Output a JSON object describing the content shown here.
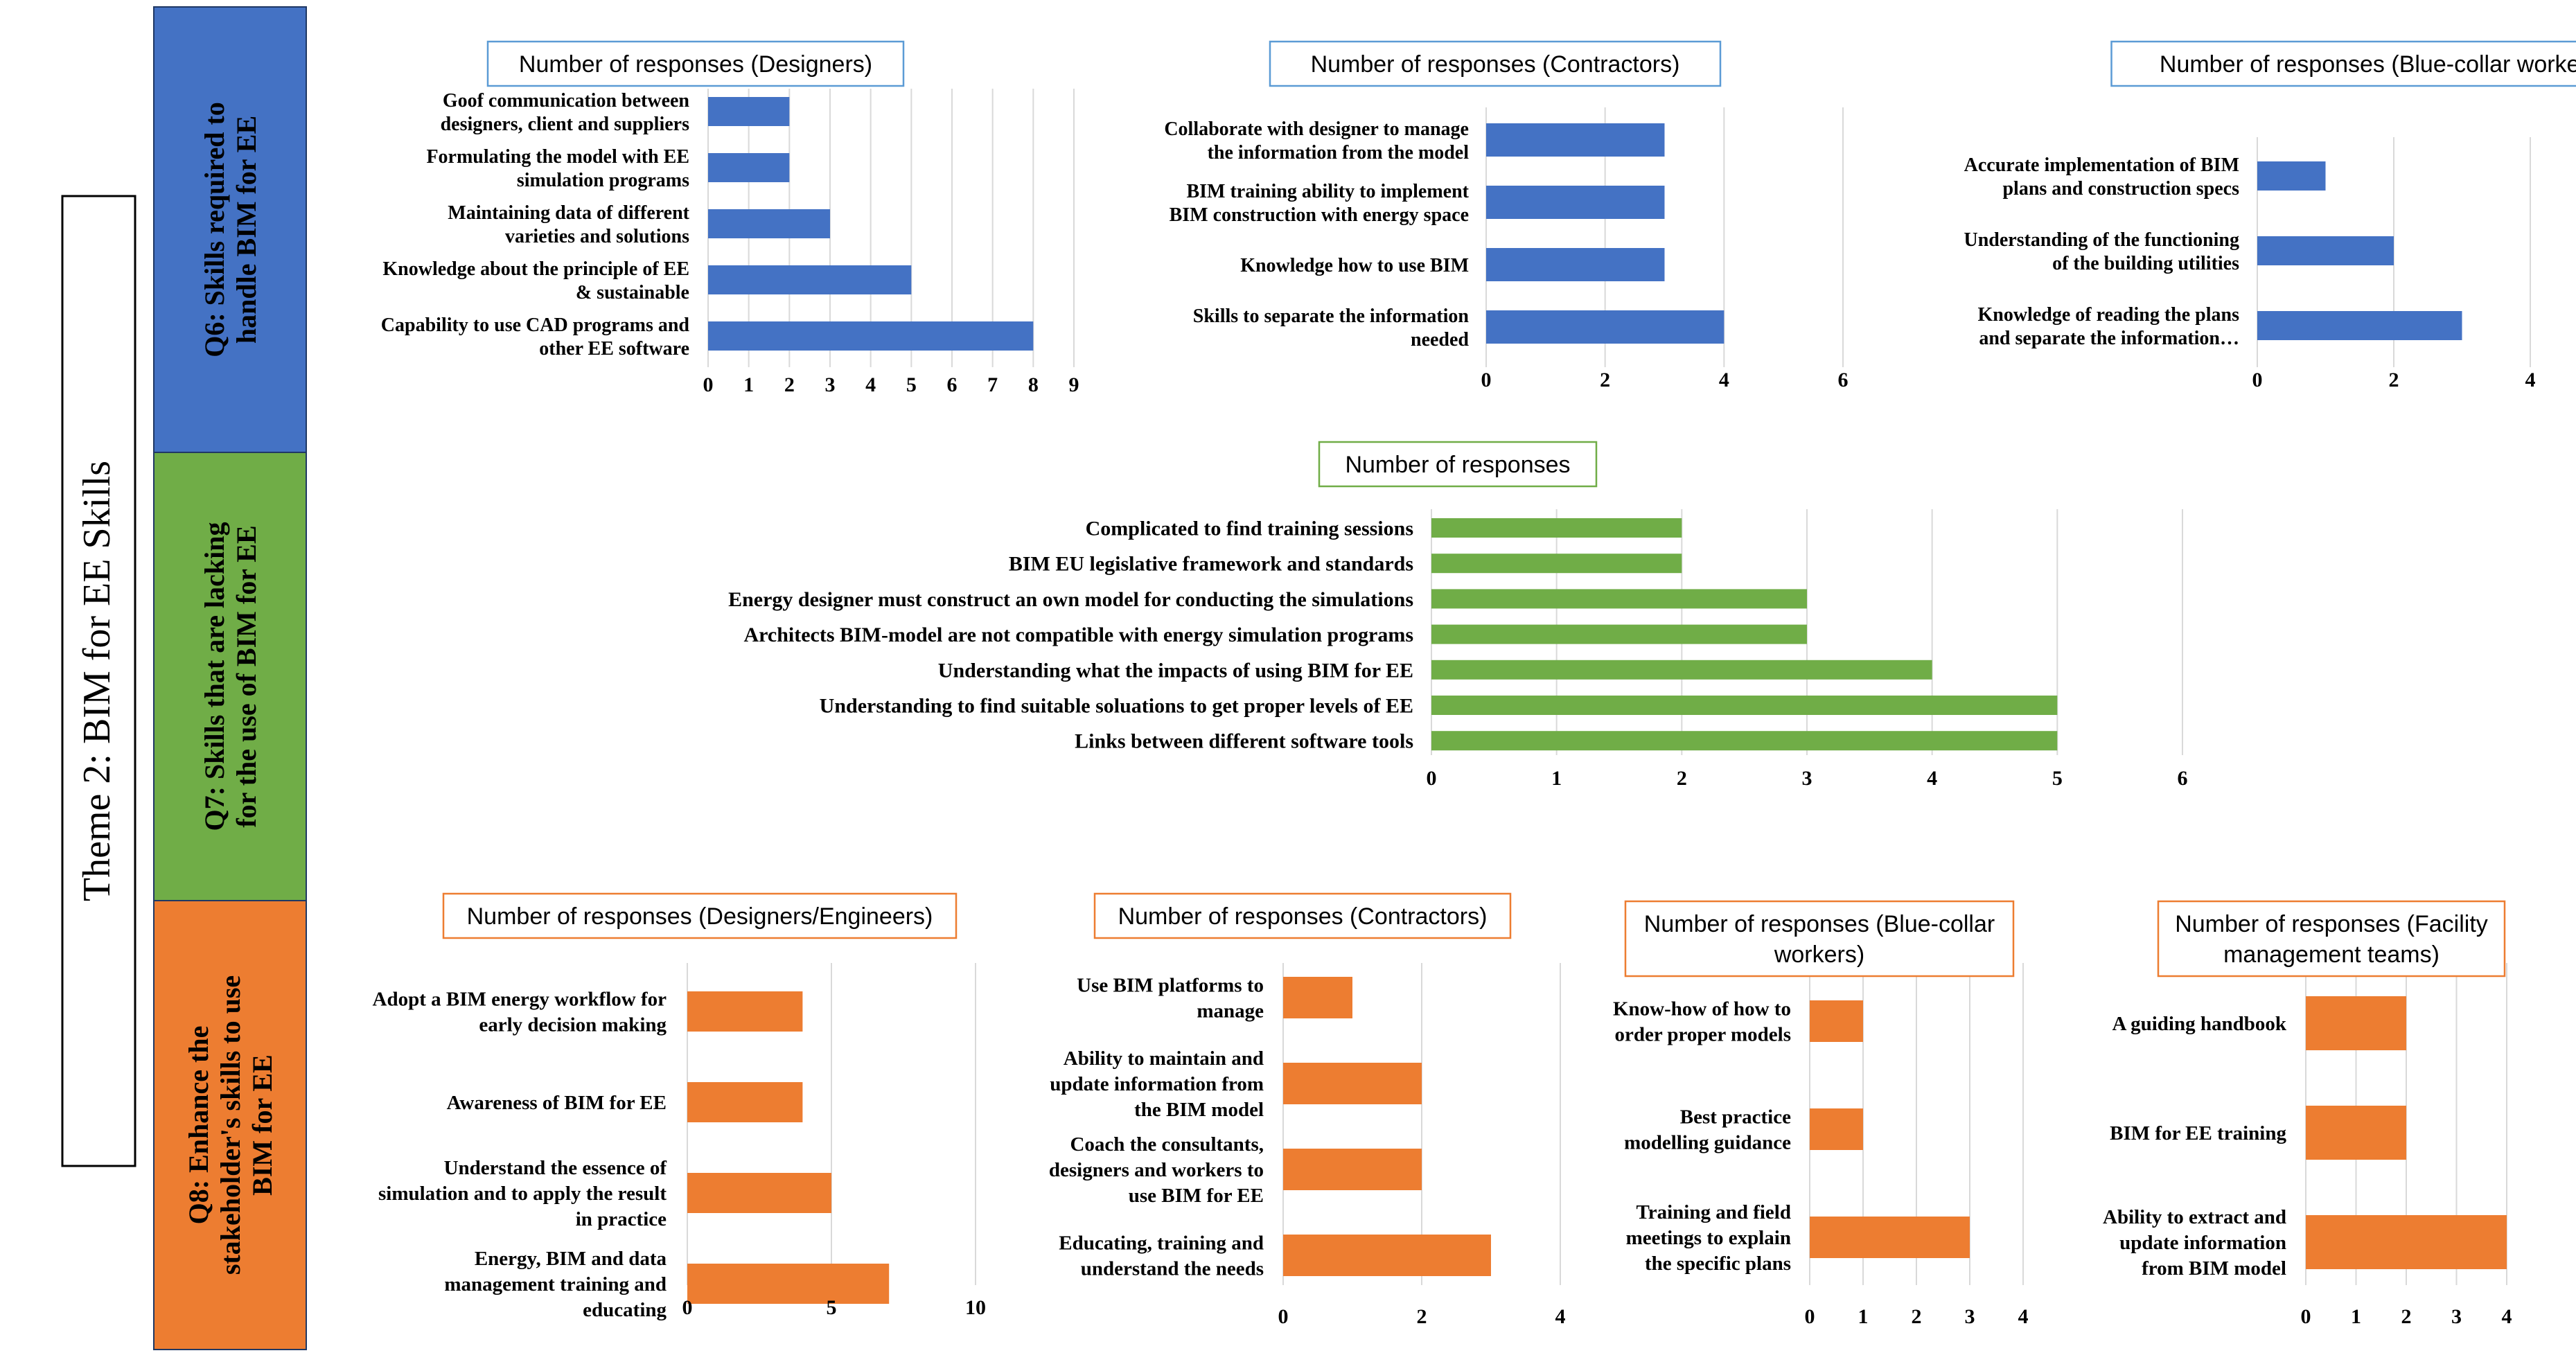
{
  "theme_label": "Theme 2: BIM for EE Skills",
  "sections": [
    {
      "id": "q6",
      "label_lines": [
        "Q6: Skills required to",
        "handle BIM for EE"
      ],
      "color": "#4472C4"
    },
    {
      "id": "q7",
      "label_lines": [
        "Q7: Skills that are lacking",
        "for the use of BIM for EE"
      ],
      "color": "#70AD47"
    },
    {
      "id": "q8",
      "label_lines": [
        "Q8: Enhance the",
        "stakeholder's skills to use",
        "BIM for EE"
      ],
      "color": "#ED7D31"
    }
  ],
  "colors": {
    "blue": "#4472C4",
    "green": "#70AD47",
    "orange": "#ED7D31",
    "title_border_blue": "#5B9BD5",
    "title_border_green": "#70AD47",
    "title_border_orange": "#ED7D31"
  },
  "chart_data": [
    {
      "type": "bar",
      "orientation": "horizontal",
      "section": "q6",
      "title": "Number of responses (Designers)",
      "categories": [
        [
          "Goof communication between",
          "designers, client and suppliers"
        ],
        [
          "Formulating the model with EE",
          "simulation programs"
        ],
        [
          "Maintaining data of different",
          "varieties and solutions"
        ],
        [
          "Knowledge about the principle of EE",
          "& sustainable"
        ],
        [
          "Capability to use CAD programs and",
          "other EE software"
        ]
      ],
      "values": [
        2,
        2,
        3,
        5,
        8
      ],
      "xlim": [
        0,
        9
      ],
      "xticks": [
        0,
        1,
        2,
        3,
        4,
        5,
        6,
        7,
        8,
        9
      ],
      "grid": true
    },
    {
      "type": "bar",
      "orientation": "horizontal",
      "section": "q6",
      "title": "Number of responses (Contractors)",
      "categories": [
        [
          "Collaborate with designer to manage",
          "the information from the model"
        ],
        [
          "BIM training ability to implement",
          "BIM construction with energy space"
        ],
        [
          "Knowledge how to use BIM"
        ],
        [
          "Skills to separate the information",
          "needed"
        ]
      ],
      "values": [
        3,
        3,
        3,
        4
      ],
      "xlim": [
        0,
        6
      ],
      "xticks": [
        0,
        2,
        4,
        6
      ],
      "grid": true
    },
    {
      "type": "bar",
      "orientation": "horizontal",
      "section": "q6",
      "title": "Number of responses (Blue-collar workers)",
      "categories": [
        [
          "Accurate implementation of BIM",
          "plans and construction specs"
        ],
        [
          "Understanding of the functioning",
          "of the building utilities"
        ],
        [
          "Knowledge of reading the plans",
          "and separate the information…"
        ]
      ],
      "values": [
        1,
        2,
        3
      ],
      "xlim": [
        0,
        4
      ],
      "xticks": [
        0,
        2,
        4
      ],
      "grid": true
    },
    {
      "type": "bar",
      "orientation": "horizontal",
      "section": "q7",
      "title": "Number of responses",
      "categories": [
        [
          "Complicated to find training sessions"
        ],
        [
          "BIM EU legislative framework and standards"
        ],
        [
          "Energy designer must construct an own model for conducting the simulations"
        ],
        [
          "Architects BIM-model are not compatible with energy simulation programs"
        ],
        [
          "Understanding what the impacts of using BIM for EE"
        ],
        [
          "Understanding to find suitable soluations to get proper levels of EE"
        ],
        [
          "Links between different software tools"
        ]
      ],
      "values": [
        2,
        2,
        3,
        3,
        4,
        5,
        5
      ],
      "xlim": [
        0,
        6
      ],
      "xticks": [
        0,
        1,
        2,
        3,
        4,
        5,
        6
      ],
      "grid": true
    },
    {
      "type": "bar",
      "orientation": "horizontal",
      "section": "q8",
      "title": "Number of responses (Designers/Engineers)",
      "categories": [
        [
          "Adopt a BIM energy workflow for",
          "early decision making"
        ],
        [
          "Awareness of BIM for EE"
        ],
        [
          "Understand the essence of",
          "simulation and to apply the result",
          "in practice"
        ],
        [
          "Energy, BIM and data",
          "management training and",
          "educating"
        ]
      ],
      "values": [
        4,
        4,
        5,
        7
      ],
      "xlim": [
        0,
        10
      ],
      "xticks": [
        0,
        5,
        10
      ],
      "grid": true
    },
    {
      "type": "bar",
      "orientation": "horizontal",
      "section": "q8",
      "title": "Number of responses (Contractors)",
      "categories": [
        [
          "Use BIM platforms to",
          "manage"
        ],
        [
          "Ability to maintain and",
          "update information from",
          "the BIM model"
        ],
        [
          "Coach the consultants,",
          "designers and workers to",
          "use BIM for EE"
        ],
        [
          "Educating, training and",
          "understand the needs"
        ]
      ],
      "values": [
        1,
        2,
        2,
        3
      ],
      "xlim": [
        0,
        4
      ],
      "xticks": [
        0,
        2,
        4
      ],
      "grid": true
    },
    {
      "type": "bar",
      "orientation": "horizontal",
      "section": "q8",
      "title": "Number of responses (Blue-collar workers)",
      "title_lines": [
        "Number of responses (Blue-collar",
        "workers)"
      ],
      "categories": [
        [
          "Know-how of how to",
          "order proper models"
        ],
        [
          "Best practice",
          "modelling guidance"
        ],
        [
          "Training and field",
          "meetings to explain",
          "the specific plans"
        ]
      ],
      "values": [
        1,
        1,
        3
      ],
      "xlim": [
        0,
        4
      ],
      "xticks": [
        0,
        1,
        2,
        3,
        4
      ],
      "grid": true
    },
    {
      "type": "bar",
      "orientation": "horizontal",
      "section": "q8",
      "title": "Number of responses (Facility management teams)",
      "title_lines": [
        "Number of responses (Facility",
        "management teams)"
      ],
      "categories": [
        [
          "A guiding handbook"
        ],
        [
          "BIM for EE training"
        ],
        [
          "Ability to extract and",
          "update information",
          "from BIM model"
        ]
      ],
      "values": [
        2,
        2,
        4
      ],
      "xlim": [
        0,
        4
      ],
      "xticks": [
        0,
        1,
        2,
        3,
        4
      ],
      "grid": true
    }
  ]
}
